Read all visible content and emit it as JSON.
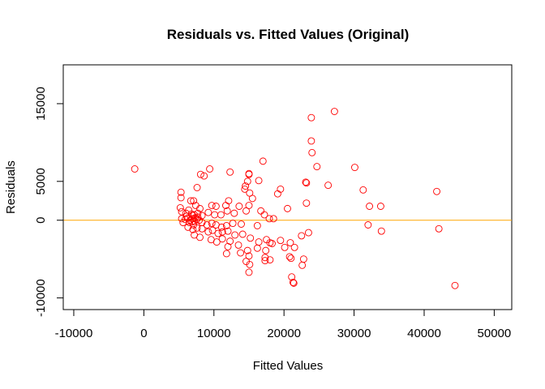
{
  "chart_data": {
    "type": "scatter",
    "title": "Residuals vs. Fitted Values (Original)",
    "xlabel": "Fitted Values",
    "ylabel": "Residuals",
    "xlim": [
      -11500,
      52500
    ],
    "ylim": [
      -11500,
      20000
    ],
    "xticks": [
      -10000,
      0,
      10000,
      20000,
      30000,
      40000,
      50000
    ],
    "yticks": [
      -10000,
      0,
      5000,
      15000
    ],
    "grid": false,
    "reference_line": {
      "y": 0,
      "color": "#ffa500"
    },
    "point_color": "#ff0000",
    "marker": "open-circle",
    "points": [
      [
        -1300,
        6600
      ],
      [
        27200,
        14000
      ],
      [
        23900,
        13200
      ],
      [
        23900,
        10200
      ],
      [
        24000,
        8700
      ],
      [
        24700,
        6900
      ],
      [
        30100,
        6800
      ],
      [
        17000,
        7600
      ],
      [
        15000,
        6000
      ],
      [
        15000,
        5900
      ],
      [
        14800,
        5000
      ],
      [
        16400,
        5100
      ],
      [
        12300,
        6200
      ],
      [
        9400,
        6600
      ],
      [
        8100,
        5900
      ],
      [
        8600,
        5700
      ],
      [
        7600,
        4200
      ],
      [
        23100,
        4900
      ],
      [
        23200,
        4800
      ],
      [
        26300,
        4500
      ],
      [
        31300,
        3900
      ],
      [
        41800,
        3700
      ],
      [
        14500,
        4400
      ],
      [
        14400,
        4000
      ],
      [
        15100,
        3500
      ],
      [
        19500,
        4000
      ],
      [
        19100,
        3400
      ],
      [
        20500,
        1500
      ],
      [
        23200,
        2200
      ],
      [
        32200,
        1800
      ],
      [
        33800,
        1800
      ],
      [
        5300,
        3600
      ],
      [
        5300,
        2900
      ],
      [
        6700,
        2500
      ],
      [
        7100,
        2500
      ],
      [
        7400,
        1900
      ],
      [
        8000,
        1500
      ],
      [
        9700,
        1900
      ],
      [
        10300,
        1800
      ],
      [
        11700,
        1900
      ],
      [
        12100,
        2500
      ],
      [
        13600,
        1800
      ],
      [
        15000,
        1900
      ],
      [
        15500,
        2800
      ],
      [
        14600,
        1200
      ],
      [
        16700,
        1200
      ],
      [
        5200,
        1600
      ],
      [
        5400,
        1100
      ],
      [
        6000,
        900
      ],
      [
        6400,
        1300
      ],
      [
        6800,
        800
      ],
      [
        7200,
        700
      ],
      [
        7700,
        900
      ],
      [
        8300,
        600
      ],
      [
        9200,
        1000
      ],
      [
        10100,
        700
      ],
      [
        11000,
        700
      ],
      [
        11900,
        1200
      ],
      [
        12900,
        900
      ],
      [
        17200,
        700
      ],
      [
        17900,
        200
      ],
      [
        18500,
        200
      ],
      [
        5400,
        200
      ],
      [
        5900,
        100
      ],
      [
        6300,
        300
      ],
      [
        6600,
        0
      ],
      [
        6900,
        200
      ],
      [
        7200,
        -100
      ],
      [
        7500,
        100
      ],
      [
        7900,
        0
      ],
      [
        8300,
        -300
      ],
      [
        9000,
        -600
      ],
      [
        9700,
        -400
      ],
      [
        10300,
        -600
      ],
      [
        11100,
        -900
      ],
      [
        11800,
        -700
      ],
      [
        12700,
        -400
      ],
      [
        13900,
        -500
      ],
      [
        16200,
        -700
      ],
      [
        5600,
        -300
      ],
      [
        6300,
        -900
      ],
      [
        7000,
        -1200
      ],
      [
        7600,
        -1000
      ],
      [
        8300,
        -1100
      ],
      [
        9200,
        -1500
      ],
      [
        9800,
        -1300
      ],
      [
        10600,
        -1700
      ],
      [
        11200,
        -1500
      ],
      [
        12000,
        -1400
      ],
      [
        13000,
        -1900
      ],
      [
        14100,
        -1800
      ],
      [
        15200,
        -2300
      ],
      [
        16400,
        -2800
      ],
      [
        17500,
        -2500
      ],
      [
        18300,
        -3000
      ],
      [
        19500,
        -2600
      ],
      [
        7200,
        -1900
      ],
      [
        8000,
        -2200
      ],
      [
        9600,
        -2500
      ],
      [
        10400,
        -2800
      ],
      [
        11200,
        -2400
      ],
      [
        12300,
        -2700
      ],
      [
        13500,
        -3200
      ],
      [
        14800,
        -3900
      ],
      [
        16200,
        -3600
      ],
      [
        17400,
        -3900
      ],
      [
        18000,
        -2900
      ],
      [
        20100,
        -3500
      ],
      [
        20900,
        -2900
      ],
      [
        21500,
        -3500
      ],
      [
        22500,
        -2000
      ],
      [
        23500,
        -1600
      ],
      [
        12000,
        -3400
      ],
      [
        13800,
        -4200
      ],
      [
        15000,
        -4600
      ],
      [
        17300,
        -4800
      ],
      [
        18000,
        -5100
      ],
      [
        20800,
        -4700
      ],
      [
        22800,
        -5000
      ],
      [
        11800,
        -4300
      ],
      [
        14600,
        -5300
      ],
      [
        15100,
        -5700
      ],
      [
        17300,
        -5200
      ],
      [
        21000,
        -4900
      ],
      [
        22600,
        -5800
      ],
      [
        15000,
        -6700
      ],
      [
        21100,
        -7300
      ],
      [
        21300,
        -8000
      ],
      [
        21400,
        -8100
      ],
      [
        32000,
        -600
      ],
      [
        33900,
        -1400
      ],
      [
        42100,
        -1100
      ],
      [
        44400,
        -8400
      ],
      [
        7000,
        600
      ],
      [
        7300,
        300
      ],
      [
        6500,
        -300
      ],
      [
        7100,
        -600
      ],
      [
        6100,
        500
      ],
      [
        6900,
        -200
      ],
      [
        7700,
        400
      ]
    ]
  }
}
